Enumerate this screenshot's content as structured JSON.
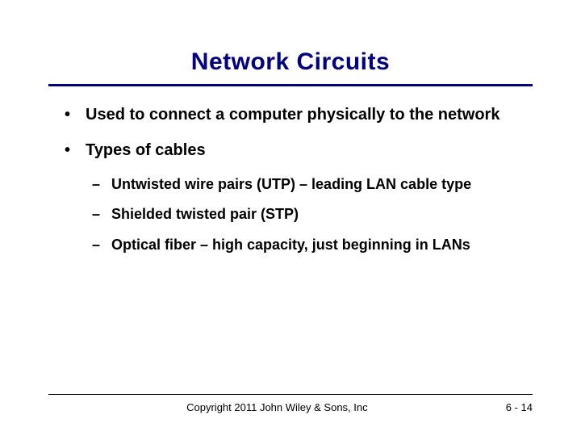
{
  "slide": {
    "title": "Network Circuits",
    "title_fontsize": 30,
    "title_color": "#000080",
    "underline_color": "#000080",
    "underline_width": 3,
    "body_fontsize_l1": 20,
    "body_fontsize_l2": 18,
    "bullets": [
      {
        "level": 1,
        "marker": "•",
        "text": "Used to connect a computer physically to the network"
      },
      {
        "level": 1,
        "marker": "•",
        "text": "Types of cables"
      },
      {
        "level": 2,
        "marker": "–",
        "text": "Untwisted wire pairs (UTP) – leading LAN cable type"
      },
      {
        "level": 2,
        "marker": "–",
        "text": "Shielded twisted pair (STP)"
      },
      {
        "level": 2,
        "marker": "–",
        "text": "Optical fiber – high capacity, just beginning in LANs"
      }
    ]
  },
  "footer": {
    "copyright": "Copyright 2011 John Wiley & Sons, Inc",
    "pagenum": "6 - 14",
    "fontsize": 13
  },
  "colors": {
    "background": "#ffffff",
    "text": "#000000"
  }
}
